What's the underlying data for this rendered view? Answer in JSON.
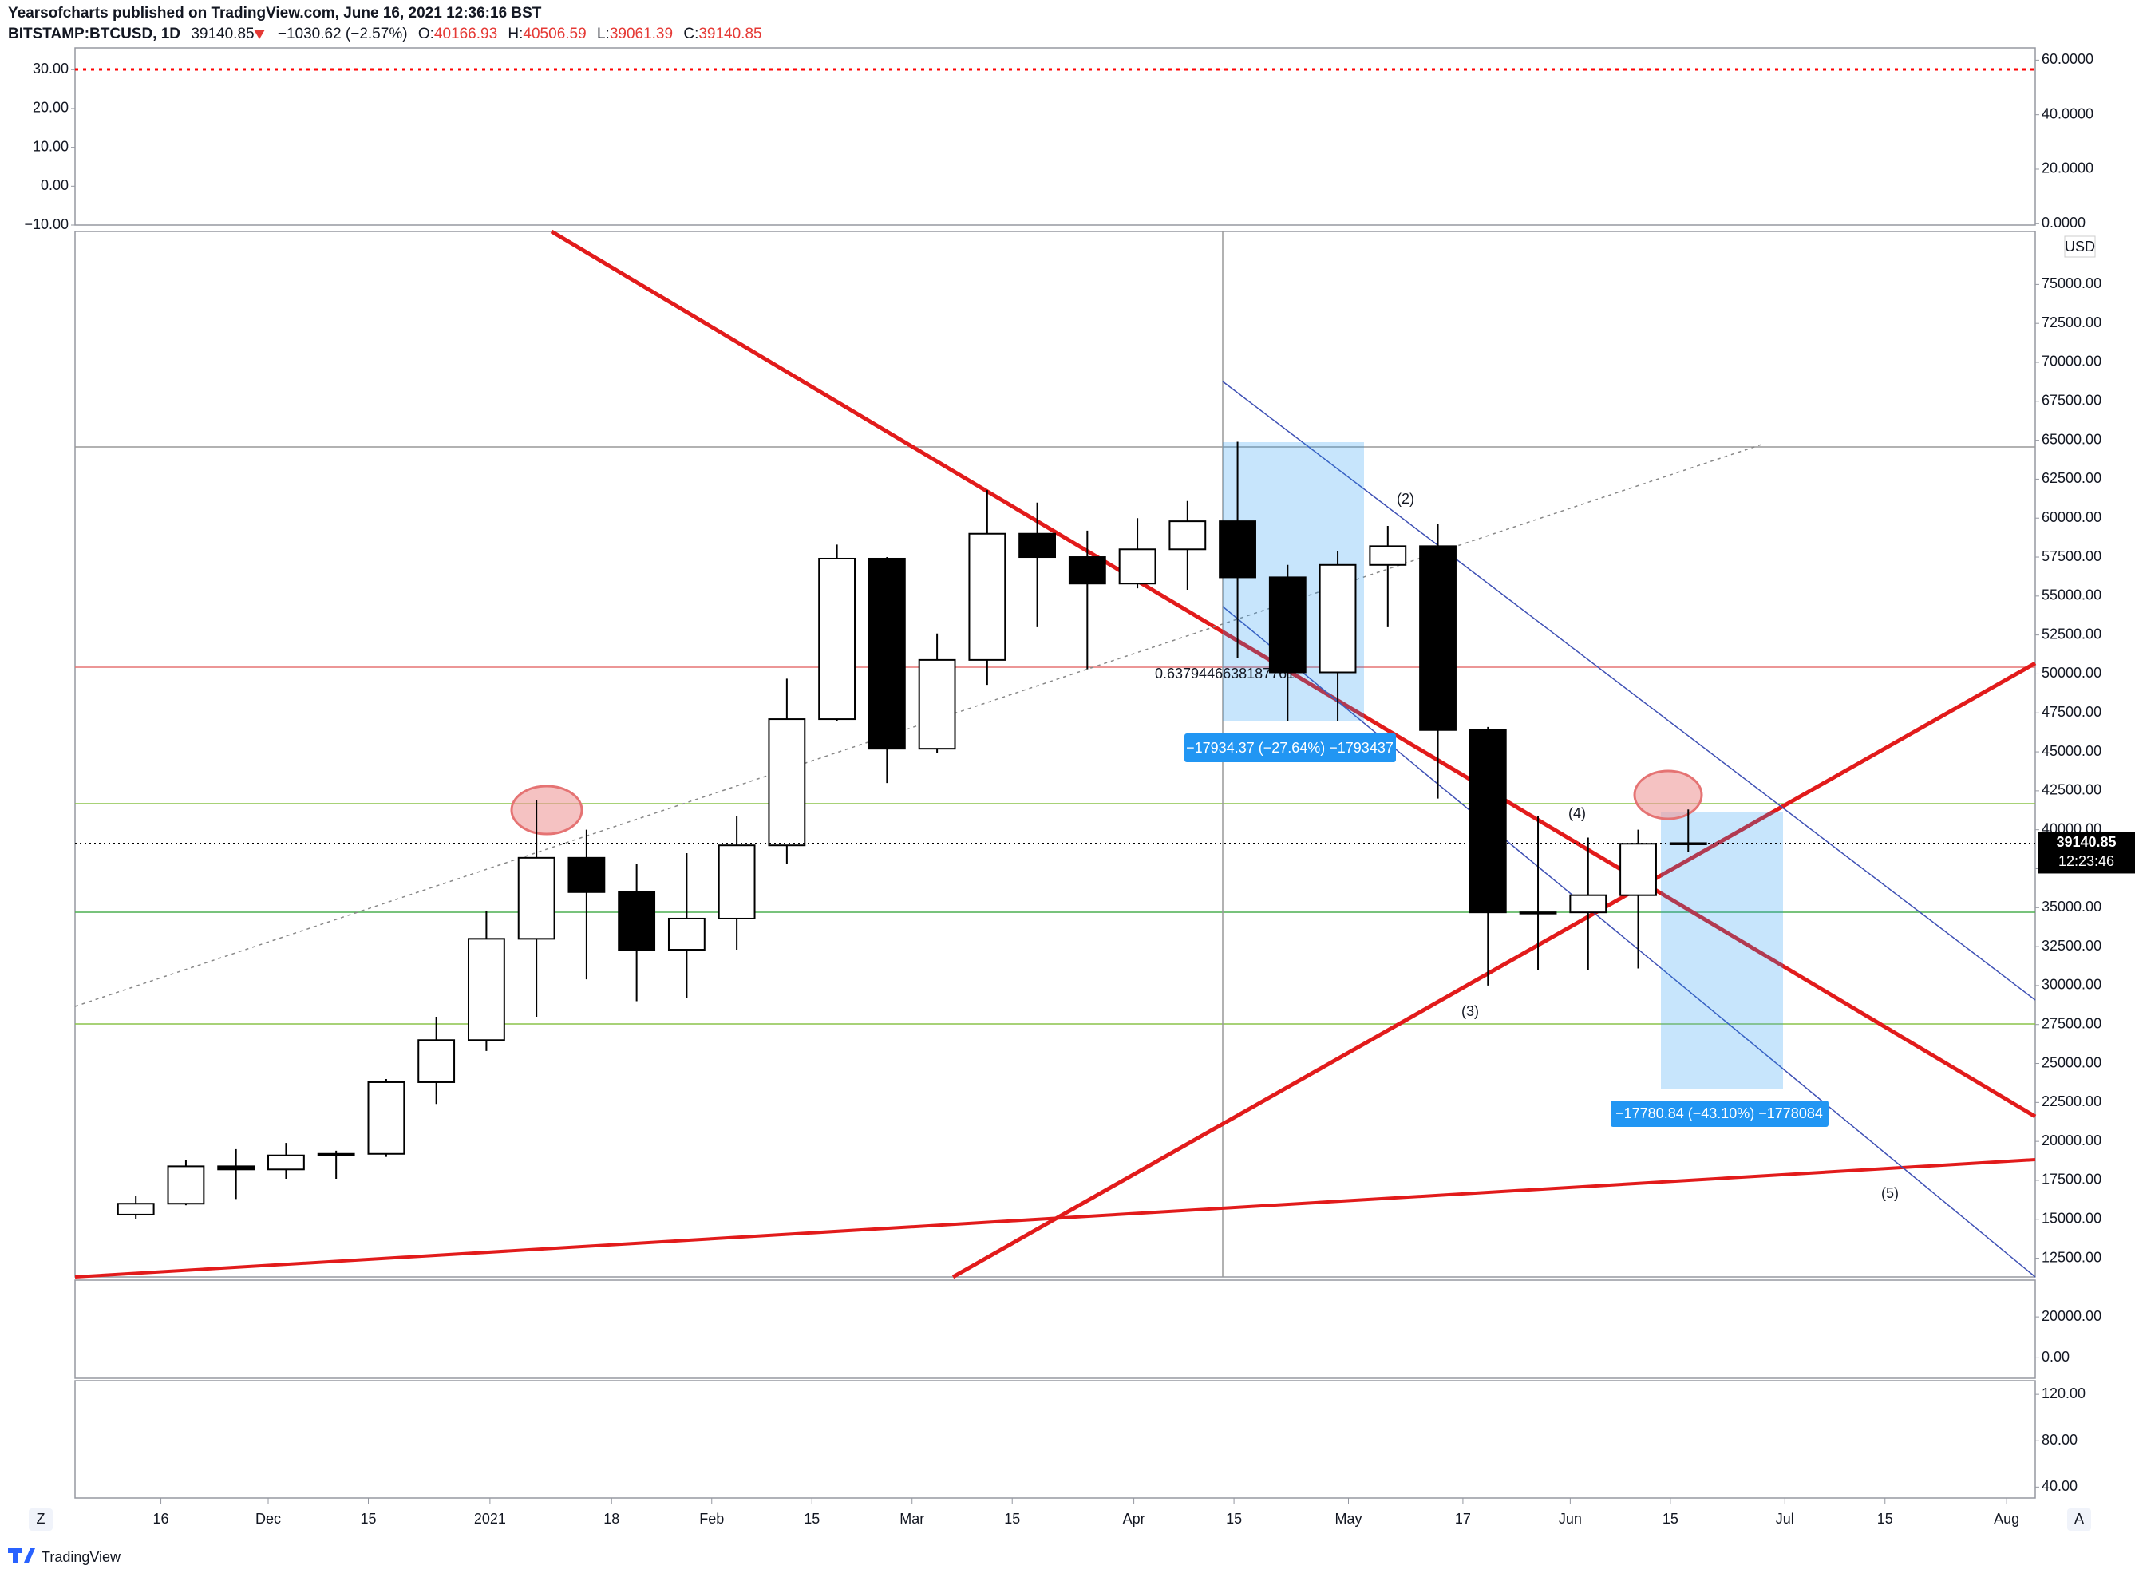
{
  "header": {
    "publisher": "Yearsofcharts published on TradingView.com, June 16, 2021 12:36:16 BST",
    "symbol": "BITSTAMP:BTCUSD, 1D",
    "price": "39140.85",
    "change": "−1030.62 (−2.57%)",
    "open_label": "O:",
    "open": "40166.93",
    "high_label": "H:",
    "high": "40506.59",
    "low_label": "L:",
    "low": "39061.39",
    "close_label": "C:",
    "close": "39140.85"
  },
  "chart_data": {
    "type": "candlestick",
    "x": [
      "2020-11-09",
      "2020-11-16",
      "2020-11-23",
      "2020-11-30",
      "2020-12-07",
      "2020-12-14",
      "2020-12-21",
      "2020-12-28",
      "2021-01-04",
      "2021-01-11",
      "2021-01-18",
      "2021-01-25",
      "2021-02-01",
      "2021-02-08",
      "2021-02-15",
      "2021-02-22",
      "2021-03-01",
      "2021-03-08",
      "2021-03-15",
      "2021-03-22",
      "2021-03-29",
      "2021-04-05",
      "2021-04-12",
      "2021-04-19",
      "2021-04-26",
      "2021-05-03",
      "2021-05-10",
      "2021-05-17",
      "2021-05-24",
      "2021-05-31",
      "2021-06-07",
      "2021-06-14"
    ],
    "open": [
      15300,
      16000,
      18400,
      18200,
      19100,
      19200,
      23800,
      26500,
      33000,
      38200,
      36000,
      32300,
      34300,
      39000,
      47100,
      57400,
      45200,
      50900,
      59000,
      57500,
      55800,
      58000,
      59800,
      56200,
      50100,
      57000,
      58200,
      46400,
      34700,
      34700,
      35800,
      39100
    ],
    "high": [
      16500,
      18800,
      19500,
      19900,
      19400,
      24000,
      28000,
      34800,
      41900,
      40000,
      37800,
      38500,
      40900,
      49700,
      58300,
      57500,
      52600,
      61800,
      61000,
      59200,
      60000,
      61100,
      64900,
      57000,
      57900,
      59500,
      59600,
      46600,
      40900,
      39500,
      40000,
      41300
    ],
    "low": [
      15000,
      15900,
      16300,
      17600,
      17600,
      19000,
      22400,
      25800,
      28000,
      30400,
      29000,
      29200,
      32300,
      37800,
      47000,
      43000,
      44900,
      49300,
      53000,
      50300,
      55500,
      55400,
      51000,
      47000,
      47000,
      53000,
      42000,
      30000,
      31000,
      31000,
      31100,
      38600
    ],
    "close": [
      16000,
      18400,
      18200,
      19100,
      19200,
      23800,
      26500,
      33000,
      38200,
      36000,
      32300,
      34300,
      39000,
      47100,
      57400,
      45200,
      50900,
      59000,
      57500,
      55800,
      58000,
      59800,
      56200,
      50100,
      57000,
      58200,
      46400,
      34700,
      34700,
      35800,
      39100,
      39140.85
    ],
    "xlim": [
      "2020-11-04",
      "2021-08-05"
    ],
    "xticks": [
      {
        "value": "2020-11-16",
        "label": "16"
      },
      {
        "value": "2020-12-01",
        "label": "Dec"
      },
      {
        "value": "2020-12-15",
        "label": "15"
      },
      {
        "value": "2021-01-01",
        "label": "2021"
      },
      {
        "value": "2021-01-18",
        "label": "18"
      },
      {
        "value": "2021-02-01",
        "label": "Feb"
      },
      {
        "value": "2021-02-15",
        "label": "15"
      },
      {
        "value": "2021-03-01",
        "label": "Mar"
      },
      {
        "value": "2021-03-15",
        "label": "15"
      },
      {
        "value": "2021-04-01",
        "label": "Apr"
      },
      {
        "value": "2021-04-15",
        "label": "15"
      },
      {
        "value": "2021-05-01",
        "label": "May"
      },
      {
        "value": "2021-05-17",
        "label": "17"
      },
      {
        "value": "2021-06-01",
        "label": "Jun"
      },
      {
        "value": "2021-06-15",
        "label": "15"
      },
      {
        "value": "2021-07-01",
        "label": "Jul"
      },
      {
        "value": "2021-07-15",
        "label": "15"
      },
      {
        "value": "2021-08-01",
        "label": "Aug"
      }
    ],
    "ylim": [
      11300,
      78400
    ],
    "yticks": [
      {
        "value": 12500,
        "label": "12500.00"
      },
      {
        "value": 15000,
        "label": "15000.00"
      },
      {
        "value": 17500,
        "label": "17500.00"
      },
      {
        "value": 20000,
        "label": "20000.00"
      },
      {
        "value": 22500,
        "label": "22500.00"
      },
      {
        "value": 25000,
        "label": "25000.00"
      },
      {
        "value": 27500,
        "label": "27500.00"
      },
      {
        "value": 30000,
        "label": "30000.00"
      },
      {
        "value": 32500,
        "label": "32500.00"
      },
      {
        "value": 35000,
        "label": "35000.00"
      },
      {
        "value": 37500,
        "label": "37500.00"
      },
      {
        "value": 40000,
        "label": "40000.00"
      },
      {
        "value": 42500,
        "label": "42500.00"
      },
      {
        "value": 45000,
        "label": "45000.00"
      },
      {
        "value": 47500,
        "label": "47500.00"
      },
      {
        "value": 50000,
        "label": "50000.00"
      },
      {
        "value": 52500,
        "label": "52500.00"
      },
      {
        "value": 55000,
        "label": "55000.00"
      },
      {
        "value": 57500,
        "label": "57500.00"
      },
      {
        "value": 60000,
        "label": "60000.00"
      },
      {
        "value": 62500,
        "label": "62500.00"
      },
      {
        "value": 65000,
        "label": "65000.00"
      },
      {
        "value": 67500,
        "label": "67500.00"
      },
      {
        "value": 70000,
        "label": "70000.00"
      },
      {
        "value": 72500,
        "label": "72500.00"
      },
      {
        "value": 75000,
        "label": "75000.00"
      }
    ],
    "up_color": "#ffffff",
    "down_color": "#000000",
    "currency": "USD",
    "last_price_label": "39140.85",
    "countdown": "12:23:46",
    "annotations": [
      "(2)",
      "(3)",
      "(4)",
      "(5)",
      "0.6379446638187761"
    ],
    "measures": [
      "−17934.37 (−27.64%) −1793437",
      "−17780.84 (−43.10%) −1778084"
    ]
  },
  "oscillator": {
    "ylim": [
      -10,
      35.6
    ],
    "yticks": [
      {
        "value": 30,
        "label": "30.00"
      },
      {
        "value": 20,
        "label": "20.00"
      },
      {
        "value": 10,
        "label": "10.00"
      },
      {
        "value": 0,
        "label": "0.00"
      },
      {
        "value": -10,
        "label": "−10.00"
      }
    ],
    "y2lim": [
      -0.5,
      64.5
    ],
    "y2ticks": [
      {
        "value": 60,
        "label": "60.0000"
      },
      {
        "value": 40,
        "label": "40.0000"
      },
      {
        "value": 20,
        "label": "20.0000"
      },
      {
        "value": 0,
        "label": "0.0000"
      }
    ]
  },
  "panel3": {
    "y2lim": [
      -10000,
      38000
    ],
    "y2ticks": [
      {
        "value": 20000,
        "label": "20000.00"
      },
      {
        "value": 0,
        "label": "0.00"
      }
    ]
  },
  "panel4": {
    "y2lim": [
      30.6,
      131.8
    ],
    "y2ticks": [
      {
        "value": 120,
        "label": "120.00"
      },
      {
        "value": 80,
        "label": "80.00"
      },
      {
        "value": 40,
        "label": "40.00"
      }
    ]
  },
  "footer": {
    "brand": "TradingView",
    "left_button": "Z",
    "right_button": "A"
  }
}
